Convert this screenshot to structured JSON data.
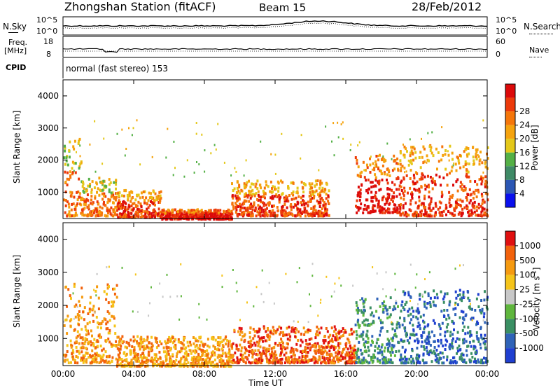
{
  "header": {
    "station": "Zhongshan Station (fitACF)",
    "beam": "Beam 15",
    "date": "28/Feb/2012"
  },
  "panels": {
    "noise": {
      "left_label": "N.Sky",
      "right_label": "N.Search",
      "left_ticks": [
        "10^5",
        "10^0"
      ],
      "right_ticks": [
        "10^5",
        "10^0"
      ]
    },
    "freq": {
      "left_label_1": "Freq.",
      "left_label_2": "[MHz]",
      "right_label": "Nave",
      "left_ticks": [
        "18",
        "8"
      ],
      "right_ticks": [
        "60",
        "0"
      ]
    },
    "cpid": {
      "label": "CPID",
      "text": "normal (fast stereo) 153"
    }
  },
  "chart_data": [
    {
      "type": "heatmap",
      "title": "",
      "xlabel": "Time UT",
      "ylabel": "Slant Range [km]",
      "x_ticks": [
        "00:00",
        "04:00",
        "08:00",
        "12:00",
        "16:00",
        "20:00",
        "00:00"
      ],
      "x_range_hours": [
        0,
        24
      ],
      "y_ticks": [
        1000,
        2000,
        3000,
        4000
      ],
      "ylim": [
        180,
        4500
      ],
      "colorbar": {
        "label": "Power [dB]",
        "ticks": [
          "4",
          "8",
          "12",
          "16",
          "20",
          "24",
          "28"
        ],
        "colors": [
          "#0a10ee",
          "#2c57b4",
          "#3f8a66",
          "#54b046",
          "#e4c81a",
          "#f5a30e",
          "#f5760a",
          "#ec3a0a",
          "#dc0a0a"
        ]
      },
      "activity": [
        {
          "t0": 0.0,
          "t1": 1.0,
          "r0": 300,
          "r1": 2700,
          "level": 6
        },
        {
          "t0": 1.0,
          "t1": 3.0,
          "r0": 300,
          "r1": 1500,
          "level": 6
        },
        {
          "t0": 3.0,
          "t1": 5.5,
          "r0": 250,
          "r1": 1100,
          "level": 7
        },
        {
          "t0": 5.5,
          "t1": 9.5,
          "r0": 200,
          "r1": 500,
          "level": 8
        },
        {
          "t0": 9.5,
          "t1": 15.0,
          "r0": 300,
          "r1": 1400,
          "level": 7
        },
        {
          "t0": 16.5,
          "t1": 19.0,
          "r0": 400,
          "r1": 2200,
          "level": 8
        },
        {
          "t0": 19.0,
          "t1": 24.0,
          "r0": 300,
          "r1": 2500,
          "level": 7
        }
      ]
    },
    {
      "type": "heatmap",
      "title": "",
      "xlabel": "Time UT",
      "ylabel": "Slant Range [km]",
      "x_ticks": [
        "00:00",
        "04:00",
        "08:00",
        "12:00",
        "16:00",
        "20:00",
        "00:00"
      ],
      "x_range_hours": [
        0,
        24
      ],
      "y_ticks": [
        1000,
        2000,
        3000,
        4000
      ],
      "ylim": [
        180,
        4500
      ],
      "colorbar": {
        "label": "Velocity [m s^-1]",
        "ticks": [
          "1000",
          "500",
          "100",
          "25",
          "-25",
          "-100",
          "-500",
          "-1000"
        ],
        "colors": [
          "#1f3fd0",
          "#2f63b8",
          "#3a8f63",
          "#5fb63d",
          "#c8c8c8",
          "#f5c41a",
          "#f59a10",
          "#f2620c",
          "#e01010"
        ]
      },
      "activity": [
        {
          "t0": 0.0,
          "t1": 3.0,
          "r0": 300,
          "r1": 2700,
          "level": 6
        },
        {
          "t0": 3.0,
          "t1": 9.5,
          "r0": 200,
          "r1": 1100,
          "level": 6
        },
        {
          "t0": 9.5,
          "t1": 16.5,
          "r0": 300,
          "r1": 1400,
          "level": 7
        },
        {
          "t0": 16.5,
          "t1": 19.0,
          "r0": 300,
          "r1": 2300,
          "level": 2
        },
        {
          "t0": 19.0,
          "t1": 24.0,
          "r0": 300,
          "r1": 2500,
          "level": 1
        }
      ]
    }
  ]
}
